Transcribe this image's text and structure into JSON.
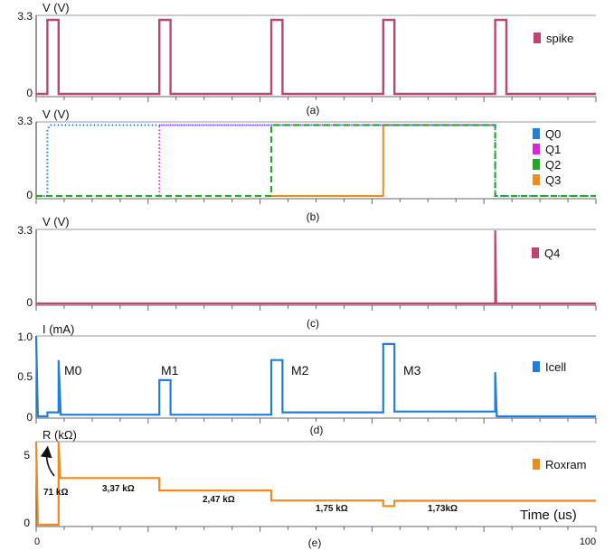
{
  "chart_data": [
    {
      "type": "line",
      "subtitle": "(a)",
      "ylabel": "V (V)",
      "yticks": [
        0,
        3.3
      ],
      "ylim": [
        0,
        3.3
      ],
      "series": [
        {
          "name": "spike",
          "color": "#c0456a",
          "points": [
            [
              0,
              0
            ],
            [
              2,
              0
            ],
            [
              2,
              3.3
            ],
            [
              4,
              3.3
            ],
            [
              4,
              0
            ],
            [
              22,
              0
            ],
            [
              22,
              3.3
            ],
            [
              24,
              3.3
            ],
            [
              24,
              0
            ],
            [
              42,
              0
            ],
            [
              42,
              3.3
            ],
            [
              44,
              3.3
            ],
            [
              44,
              0
            ],
            [
              62,
              0
            ],
            [
              62,
              3.3
            ],
            [
              64,
              3.3
            ],
            [
              64,
              0
            ],
            [
              82,
              0
            ],
            [
              82,
              3.3
            ],
            [
              84,
              3.3
            ],
            [
              84,
              0
            ],
            [
              100,
              0
            ]
          ]
        }
      ]
    },
    {
      "type": "line",
      "subtitle": "(b)",
      "ylabel": "V (V)",
      "yticks": [
        0,
        3.3
      ],
      "ylim": [
        0,
        3.3
      ],
      "series": [
        {
          "name": "Q0",
          "color": "#1f7fe0",
          "dash": "dotted",
          "points": [
            [
              0,
              0
            ],
            [
              2,
              0
            ],
            [
              2,
              3.0
            ],
            [
              2.5,
              3.2
            ],
            [
              82,
              3.2
            ],
            [
              82,
              0
            ],
            [
              100,
              0
            ]
          ]
        },
        {
          "name": "Q1",
          "color": "#e020e0",
          "dash": "dotted",
          "points": [
            [
              22,
              0
            ],
            [
              22,
              3.2
            ],
            [
              82,
              3.2
            ]
          ]
        },
        {
          "name": "Q2",
          "color": "#22aa22",
          "dash": "dashed",
          "points": [
            [
              0,
              0
            ],
            [
              42,
              0
            ],
            [
              42,
              3.2
            ],
            [
              82,
              3.2
            ],
            [
              82,
              0
            ],
            [
              100,
              0
            ]
          ]
        },
        {
          "name": "Q3",
          "color": "#f08a1c",
          "dash": "solid",
          "points": [
            [
              42,
              0
            ],
            [
              62,
              0
            ],
            [
              62,
              3.2
            ],
            [
              82,
              3.2
            ]
          ]
        }
      ]
    },
    {
      "type": "line",
      "subtitle": "(c)",
      "ylabel": "V (V)",
      "yticks": [
        0,
        3.3
      ],
      "ylim": [
        0,
        3.3
      ],
      "series": [
        {
          "name": "Q4",
          "color": "#c0456a",
          "points": [
            [
              0,
              0
            ],
            [
              82,
              0
            ],
            [
              82,
              3.3
            ],
            [
              82.2,
              0
            ],
            [
              100,
              0
            ]
          ]
        }
      ]
    },
    {
      "type": "line",
      "subtitle": "(d)",
      "ylabel": "I (mA)",
      "yticks": [
        0,
        0.5,
        1.0
      ],
      "ytick_labels": [
        "0",
        "0.5",
        "1.0"
      ],
      "ylim": [
        0,
        1.0
      ],
      "annotations": [
        "M0",
        "M1",
        "M2",
        "M3"
      ],
      "series": [
        {
          "name": "Icell",
          "color": "#1f7fe0",
          "points": [
            [
              0,
              1.0
            ],
            [
              0.3,
              0
            ],
            [
              2,
              0
            ],
            [
              2,
              0.05
            ],
            [
              4,
              0.05
            ],
            [
              4,
              0.7
            ],
            [
              4.4,
              0.02
            ],
            [
              22,
              0.02
            ],
            [
              22,
              0.45
            ],
            [
              24,
              0.45
            ],
            [
              24,
              0.02
            ],
            [
              42,
              0.02
            ],
            [
              42,
              0.7
            ],
            [
              44,
              0.7
            ],
            [
              44,
              0.05
            ],
            [
              62,
              0.05
            ],
            [
              62,
              0.9
            ],
            [
              64,
              0.9
            ],
            [
              64,
              0.06
            ],
            [
              82,
              0.06
            ],
            [
              82,
              0.55
            ],
            [
              82.3,
              0
            ],
            [
              100,
              0
            ]
          ]
        }
      ]
    },
    {
      "type": "line",
      "subtitle": "(e)",
      "ylabel": "R (kΩ)",
      "xlabel": "Time (us)",
      "xticks": [
        0,
        100
      ],
      "yticks": [
        0,
        5
      ],
      "ylim": [
        0,
        6
      ],
      "xlim": [
        0,
        100
      ],
      "annotations": [
        "71 kΩ",
        "3,37 kΩ",
        "2,47 kΩ",
        "1,75 kΩ",
        "1,73kΩ"
      ],
      "series": [
        {
          "name": "Roxram",
          "color": "#f08a1c",
          "points": [
            [
              0,
              6
            ],
            [
              0.3,
              0
            ],
            [
              4,
              0
            ],
            [
              4,
              6
            ],
            [
              4.3,
              3.37
            ],
            [
              22,
              3.37
            ],
            [
              22,
              2.47
            ],
            [
              42,
              2.47
            ],
            [
              42,
              1.75
            ],
            [
              62,
              1.75
            ],
            [
              62,
              1.35
            ],
            [
              64,
              1.35
            ],
            [
              64,
              1.73
            ],
            [
              100,
              1.73
            ]
          ]
        }
      ]
    }
  ]
}
